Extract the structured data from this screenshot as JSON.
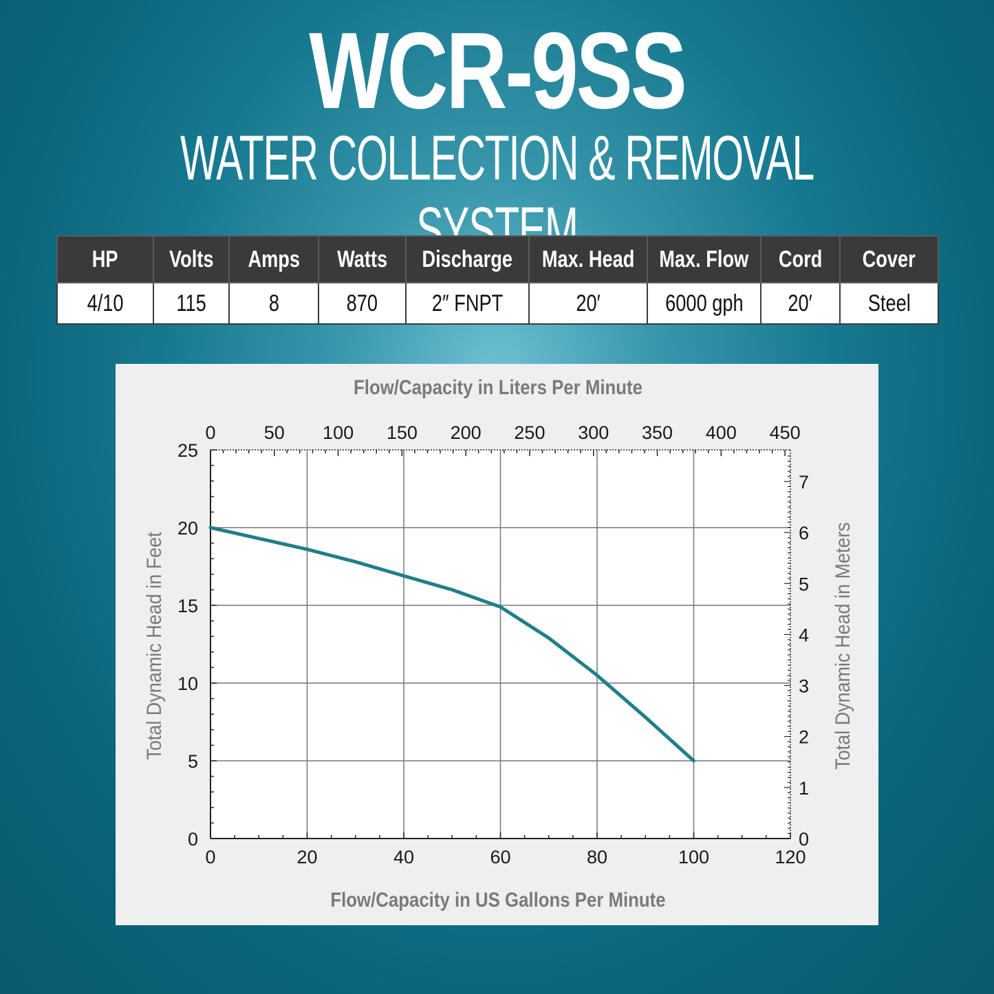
{
  "header": {
    "title": "WCR-9SS",
    "subtitle": "WATER COLLECTION & REMOVAL SYSTEM"
  },
  "spec_table": {
    "headers": [
      "HP",
      "Volts",
      "Amps",
      "Watts",
      "Discharge",
      "Max. Head",
      "Max. Flow",
      "Cord",
      "Cover"
    ],
    "values": [
      "4/10",
      "115",
      "8",
      "870",
      "2″ FNPT",
      "20′",
      "6000 gph",
      "20′",
      "Steel"
    ]
  },
  "chart_data": {
    "type": "line",
    "title": "",
    "xlabel": "Flow/Capacity in US Gallons Per Minute",
    "ylabel": "Total Dynamic Head in Feet",
    "x2label": "Flow/Capacity in Liters Per Minute",
    "y2label": "Total Dynamic Head in Meters",
    "xlim": [
      0,
      120
    ],
    "ylim": [
      0,
      25
    ],
    "x2lim": [
      0,
      454.25
    ],
    "y2lim": [
      0,
      7.62
    ],
    "x_ticks": [
      "0",
      "20",
      "40",
      "60",
      "80",
      "100",
      "120"
    ],
    "y_ticks": [
      "0",
      "5",
      "10",
      "15",
      "20",
      "25"
    ],
    "x2_ticks": [
      "0",
      "50",
      "100",
      "150",
      "200",
      "250",
      "300",
      "350",
      "400",
      "450"
    ],
    "y2_ticks": [
      "0",
      "1",
      "2",
      "3",
      "4",
      "5",
      "6",
      "7"
    ],
    "grid": true,
    "series": [
      {
        "color": "#1f7f8a",
        "x": [
          0,
          10,
          20,
          30,
          40,
          50,
          60,
          70,
          80,
          90,
          100
        ],
        "y": [
          20,
          19.3,
          18.6,
          17.8,
          16.9,
          16.0,
          14.9,
          12.9,
          10.5,
          7.8,
          5.0
        ]
      }
    ],
    "colors": {
      "axis": "#222222",
      "grid": "#777777",
      "label": "#7a7a7a",
      "tick_label": "#1a1a1a"
    }
  }
}
